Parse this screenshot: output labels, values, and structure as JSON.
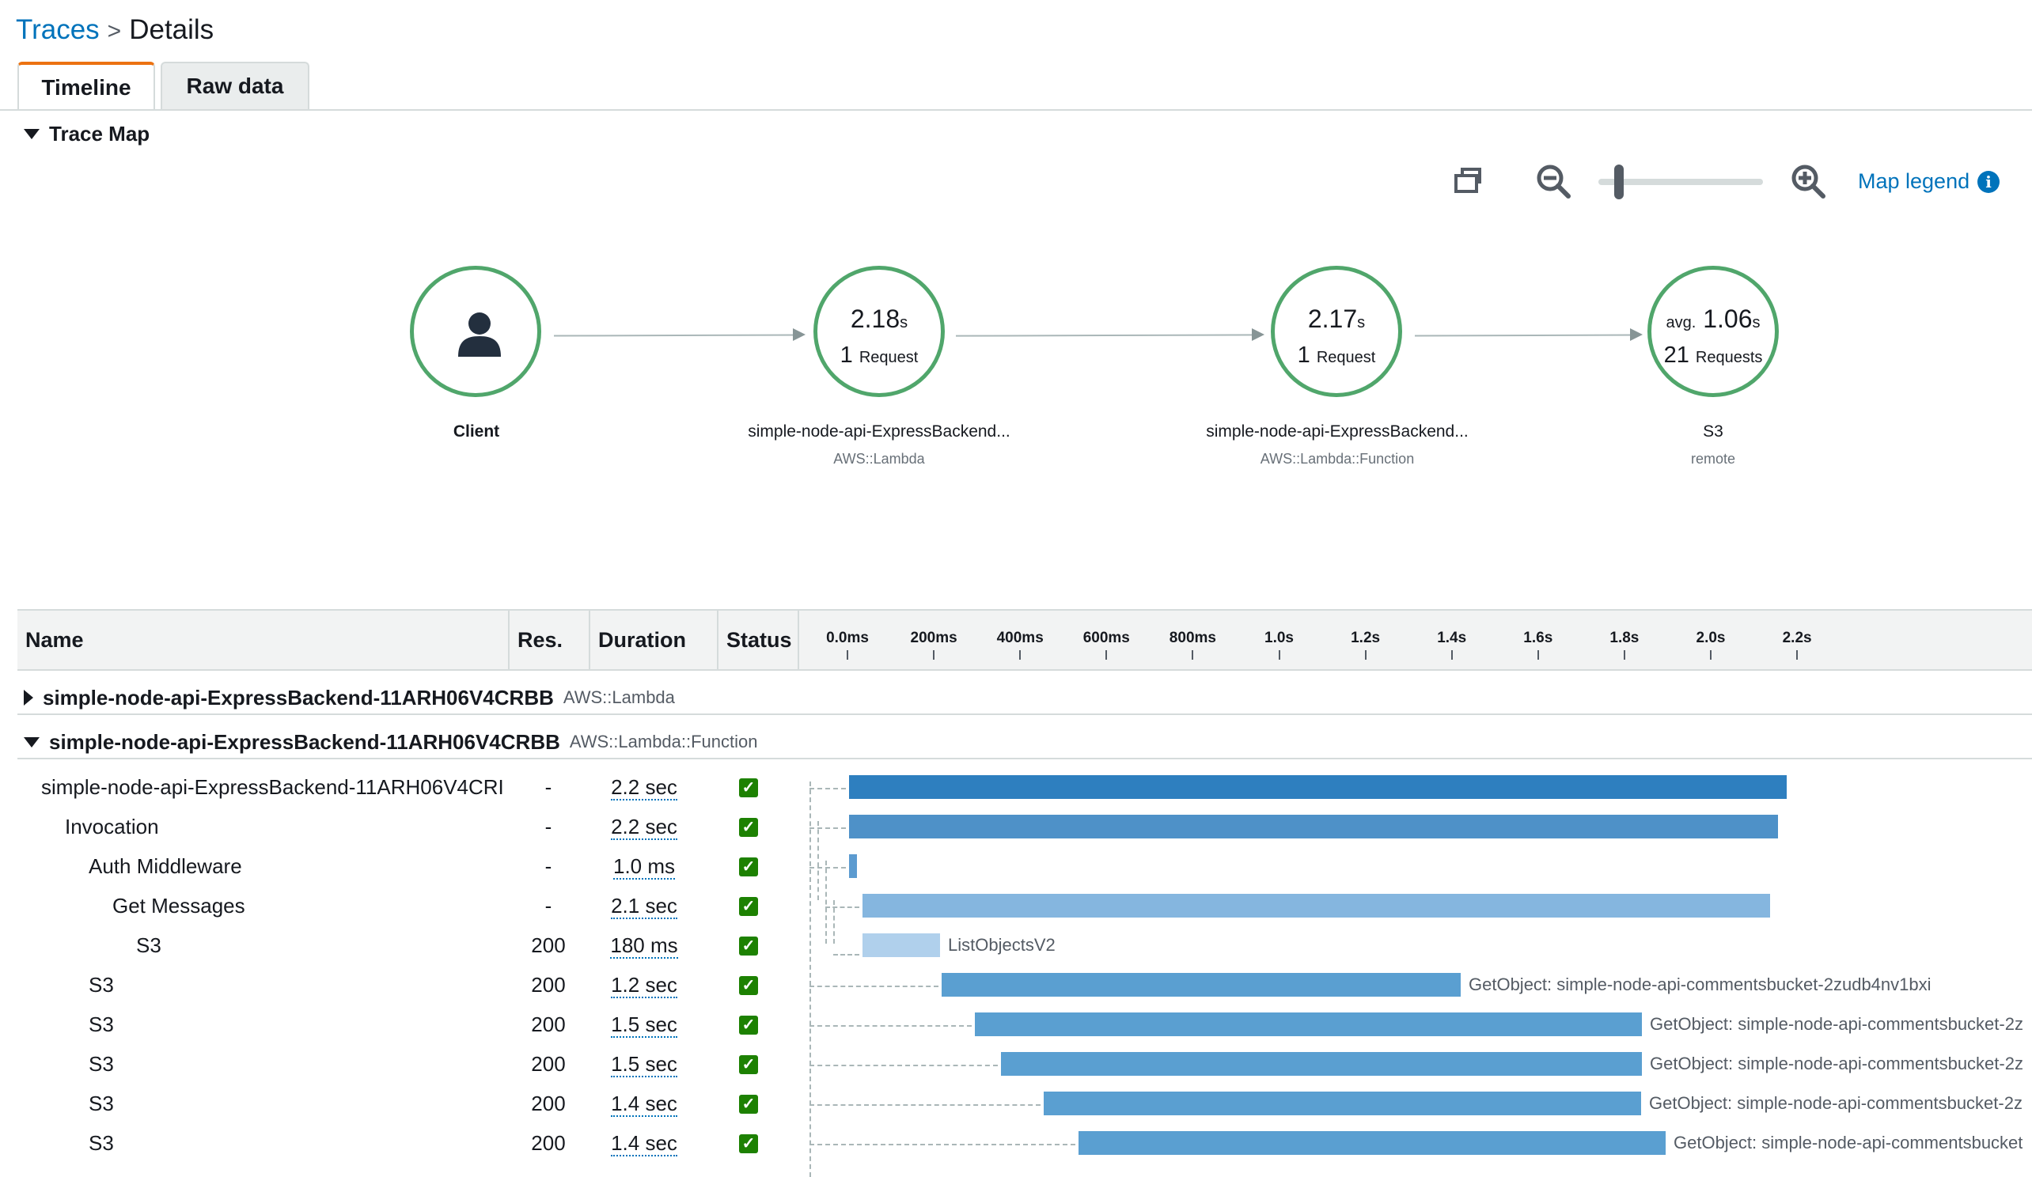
{
  "breadcrumb": {
    "parent": "Traces",
    "separator": ">",
    "current": "Details"
  },
  "tabs": [
    {
      "label": "Timeline",
      "active": true
    },
    {
      "label": "Raw data",
      "active": false
    }
  ],
  "trace_map": {
    "title": "Trace Map",
    "legend_label": "Map legend",
    "zoom_level": 0.1,
    "nodes": [
      {
        "name": "Client",
        "icon": "user-icon"
      },
      {
        "value": "2.18",
        "unit": "s",
        "count": "1",
        "count_label": "Request",
        "name": "simple-node-api-ExpressBackend...",
        "type": "AWS::Lambda"
      },
      {
        "value": "2.17",
        "unit": "s",
        "count": "1",
        "count_label": "Request",
        "name": "simple-node-api-ExpressBackend...",
        "type": "AWS::Lambda::Function"
      },
      {
        "prefix": "avg.",
        "value": "1.06",
        "unit": "s",
        "count": "21",
        "count_label": "Requests",
        "name": "S3",
        "type": "remote"
      }
    ],
    "node_color": "#50a66b"
  },
  "timeline": {
    "headers": {
      "name": "Name",
      "res": "Res.",
      "duration": "Duration",
      "status": "Status"
    },
    "ticks": [
      "0.0ms",
      "200ms",
      "400ms",
      "600ms",
      "800ms",
      "1.0s",
      "1.2s",
      "1.4s",
      "1.6s",
      "1.8s",
      "2.0s",
      "2.2s"
    ],
    "groups": [
      {
        "name": "simple-node-api-ExpressBackend-11ARH06V4CRBB",
        "type": "AWS::Lambda",
        "expanded": false
      },
      {
        "name": "simple-node-api-ExpressBackend-11ARH06V4CRBB",
        "type": "AWS::Lambda::Function",
        "expanded": true
      }
    ],
    "rows": [
      {
        "name": "simple-node-api-ExpressBackend-11ARH06V4CRI",
        "res": "-",
        "duration": "2.2 sec",
        "status": "ok",
        "label": ""
      },
      {
        "name": "Invocation",
        "res": "-",
        "duration": "2.2 sec",
        "status": "ok",
        "label": ""
      },
      {
        "name": "Auth Middleware",
        "res": "-",
        "duration": "1.0 ms",
        "status": "ok",
        "label": ""
      },
      {
        "name": "Get Messages",
        "res": "-",
        "duration": "2.1 sec",
        "status": "ok",
        "label": ""
      },
      {
        "name": "S3",
        "res": "200",
        "duration": "180 ms",
        "status": "ok",
        "label": "ListObjectsV2"
      },
      {
        "name": "S3",
        "res": "200",
        "duration": "1.2 sec",
        "status": "ok",
        "label": "GetObject: simple-node-api-commentsbucket-2zudb4nv1bxi"
      },
      {
        "name": "S3",
        "res": "200",
        "duration": "1.5 sec",
        "status": "ok",
        "label": "GetObject: simple-node-api-commentsbucket-2z"
      },
      {
        "name": "S3",
        "res": "200",
        "duration": "1.5 sec",
        "status": "ok",
        "label": "GetObject: simple-node-api-commentsbucket-2z"
      },
      {
        "name": "S3",
        "res": "200",
        "duration": "1.4 sec",
        "status": "ok",
        "label": "GetObject: simple-node-api-commentsbucket-2z"
      },
      {
        "name": "S3",
        "res": "200",
        "duration": "1.4 sec",
        "status": "ok",
        "label": "GetObject: simple-node-api-commentsbucket"
      }
    ],
    "status_color": "#1d8102"
  }
}
